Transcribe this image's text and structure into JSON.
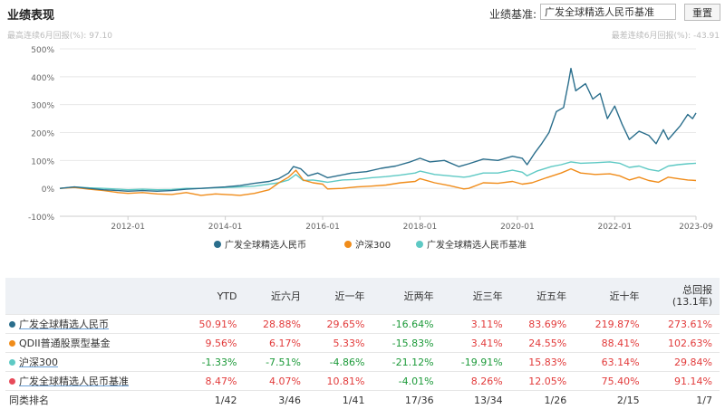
{
  "header": {
    "title": "业绩表现",
    "bench_label": "业绩基准:",
    "bench_value": "广发全球精选人民币基准",
    "reset_label": "重置",
    "max_gain": "最高连续6月回报(%): 97.10",
    "max_loss": "最差连续6月回报(%): -43.91"
  },
  "colors": {
    "fund": "#2a6e8c",
    "csi300": "#f08c1a",
    "benchmark": "#5ec9c4",
    "qdii": "#f08c1a",
    "fund_dot": "#2a6e8c",
    "bench_dot": "#e74b5a"
  },
  "chart_data": {
    "type": "line",
    "y_tick_labels": [
      "500%",
      "400%",
      "300%",
      "200%",
      "100%",
      "0%",
      "-100%"
    ],
    "x_tick_labels": [
      "2012-01",
      "2014-01",
      "2016-01",
      "2018-01",
      "2020-01",
      "2022-01",
      "2023-09"
    ],
    "ylim": [
      -100,
      500
    ],
    "xlim": [
      2010.6,
      2023.67
    ],
    "x_ticks": [
      2012.0,
      2014.0,
      2016.0,
      2018.0,
      2020.0,
      2022.0,
      2023.67
    ],
    "legend_position": "bottom",
    "series": [
      {
        "name": "广发全球精选人民币",
        "color": "#2a6e8c",
        "points": [
          [
            2010.6,
            0
          ],
          [
            2010.9,
            5
          ],
          [
            2011.2,
            0
          ],
          [
            2011.5,
            -5
          ],
          [
            2011.8,
            -8
          ],
          [
            2012.0,
            -10
          ],
          [
            2012.3,
            -8
          ],
          [
            2012.6,
            -10
          ],
          [
            2012.9,
            -8
          ],
          [
            2013.2,
            -3
          ],
          [
            2013.5,
            0
          ],
          [
            2013.8,
            3
          ],
          [
            2014.0,
            5
          ],
          [
            2014.3,
            10
          ],
          [
            2014.6,
            18
          ],
          [
            2014.9,
            25
          ],
          [
            2015.1,
            35
          ],
          [
            2015.3,
            55
          ],
          [
            2015.4,
            78
          ],
          [
            2015.55,
            70
          ],
          [
            2015.7,
            45
          ],
          [
            2015.9,
            55
          ],
          [
            2016.1,
            38
          ],
          [
            2016.3,
            45
          ],
          [
            2016.6,
            55
          ],
          [
            2016.9,
            60
          ],
          [
            2017.2,
            72
          ],
          [
            2017.5,
            80
          ],
          [
            2017.8,
            95
          ],
          [
            2018.0,
            108
          ],
          [
            2018.2,
            95
          ],
          [
            2018.5,
            100
          ],
          [
            2018.8,
            78
          ],
          [
            2019.0,
            88
          ],
          [
            2019.3,
            105
          ],
          [
            2019.6,
            100
          ],
          [
            2019.9,
            115
          ],
          [
            2020.1,
            108
          ],
          [
            2020.2,
            85
          ],
          [
            2020.35,
            125
          ],
          [
            2020.5,
            160
          ],
          [
            2020.65,
            200
          ],
          [
            2020.8,
            275
          ],
          [
            2020.95,
            290
          ],
          [
            2021.05,
            380
          ],
          [
            2021.1,
            430
          ],
          [
            2021.2,
            350
          ],
          [
            2021.4,
            375
          ],
          [
            2021.55,
            320
          ],
          [
            2021.7,
            340
          ],
          [
            2021.85,
            250
          ],
          [
            2022.0,
            295
          ],
          [
            2022.15,
            230
          ],
          [
            2022.3,
            175
          ],
          [
            2022.5,
            205
          ],
          [
            2022.7,
            190
          ],
          [
            2022.85,
            160
          ],
          [
            2023.0,
            210
          ],
          [
            2023.1,
            175
          ],
          [
            2023.2,
            195
          ],
          [
            2023.35,
            225
          ],
          [
            2023.5,
            265
          ],
          [
            2023.6,
            250
          ],
          [
            2023.67,
            270
          ]
        ]
      },
      {
        "name": "沪深300",
        "color": "#f08c1a",
        "points": [
          [
            2010.6,
            0
          ],
          [
            2010.9,
            3
          ],
          [
            2011.2,
            -3
          ],
          [
            2011.5,
            -8
          ],
          [
            2011.8,
            -15
          ],
          [
            2012.0,
            -18
          ],
          [
            2012.3,
            -15
          ],
          [
            2012.6,
            -20
          ],
          [
            2012.9,
            -22
          ],
          [
            2013.2,
            -15
          ],
          [
            2013.5,
            -25
          ],
          [
            2013.8,
            -20
          ],
          [
            2014.0,
            -22
          ],
          [
            2014.3,
            -25
          ],
          [
            2014.6,
            -18
          ],
          [
            2014.9,
            -5
          ],
          [
            2015.1,
            20
          ],
          [
            2015.3,
            40
          ],
          [
            2015.45,
            65
          ],
          [
            2015.6,
            30
          ],
          [
            2015.8,
            20
          ],
          [
            2016.0,
            15
          ],
          [
            2016.1,
            -2
          ],
          [
            2016.4,
            0
          ],
          [
            2016.7,
            5
          ],
          [
            2017.0,
            8
          ],
          [
            2017.3,
            12
          ],
          [
            2017.6,
            20
          ],
          [
            2017.9,
            25
          ],
          [
            2018.0,
            35
          ],
          [
            2018.3,
            20
          ],
          [
            2018.6,
            10
          ],
          [
            2018.9,
            -2
          ],
          [
            2019.0,
            0
          ],
          [
            2019.3,
            20
          ],
          [
            2019.6,
            18
          ],
          [
            2019.9,
            25
          ],
          [
            2020.1,
            15
          ],
          [
            2020.3,
            20
          ],
          [
            2020.6,
            38
          ],
          [
            2020.9,
            55
          ],
          [
            2021.1,
            70
          ],
          [
            2021.3,
            55
          ],
          [
            2021.6,
            50
          ],
          [
            2021.9,
            52
          ],
          [
            2022.1,
            45
          ],
          [
            2022.3,
            30
          ],
          [
            2022.5,
            40
          ],
          [
            2022.7,
            28
          ],
          [
            2022.9,
            22
          ],
          [
            2023.1,
            40
          ],
          [
            2023.3,
            35
          ],
          [
            2023.5,
            30
          ],
          [
            2023.67,
            28
          ]
        ]
      },
      {
        "name": "广发全球精选人民币基准",
        "color": "#5ec9c4",
        "points": [
          [
            2010.6,
            0
          ],
          [
            2010.9,
            5
          ],
          [
            2011.2,
            2
          ],
          [
            2011.5,
            0
          ],
          [
            2011.8,
            -3
          ],
          [
            2012.0,
            -5
          ],
          [
            2012.3,
            -3
          ],
          [
            2012.6,
            -5
          ],
          [
            2012.9,
            -4
          ],
          [
            2013.2,
            0
          ],
          [
            2013.5,
            0
          ],
          [
            2013.8,
            2
          ],
          [
            2014.0,
            3
          ],
          [
            2014.3,
            5
          ],
          [
            2014.6,
            8
          ],
          [
            2014.9,
            15
          ],
          [
            2015.1,
            20
          ],
          [
            2015.3,
            30
          ],
          [
            2015.45,
            50
          ],
          [
            2015.6,
            28
          ],
          [
            2015.8,
            30
          ],
          [
            2016.0,
            25
          ],
          [
            2016.1,
            22
          ],
          [
            2016.4,
            30
          ],
          [
            2016.7,
            32
          ],
          [
            2017.0,
            38
          ],
          [
            2017.3,
            42
          ],
          [
            2017.6,
            48
          ],
          [
            2017.9,
            55
          ],
          [
            2018.0,
            62
          ],
          [
            2018.3,
            50
          ],
          [
            2018.6,
            45
          ],
          [
            2018.9,
            40
          ],
          [
            2019.0,
            42
          ],
          [
            2019.3,
            55
          ],
          [
            2019.6,
            55
          ],
          [
            2019.9,
            65
          ],
          [
            2020.1,
            58
          ],
          [
            2020.2,
            45
          ],
          [
            2020.4,
            62
          ],
          [
            2020.7,
            78
          ],
          [
            2020.9,
            85
          ],
          [
            2021.1,
            95
          ],
          [
            2021.3,
            90
          ],
          [
            2021.6,
            92
          ],
          [
            2021.9,
            95
          ],
          [
            2022.1,
            90
          ],
          [
            2022.3,
            75
          ],
          [
            2022.5,
            80
          ],
          [
            2022.7,
            68
          ],
          [
            2022.9,
            62
          ],
          [
            2023.1,
            80
          ],
          [
            2023.3,
            85
          ],
          [
            2023.5,
            88
          ],
          [
            2023.67,
            90
          ]
        ]
      }
    ]
  },
  "table": {
    "headers": [
      "YTD",
      "近六月",
      "近一年",
      "近两年",
      "近三年",
      "近五年",
      "近十年",
      "总回报",
      "(13.1年)"
    ],
    "rows": [
      {
        "name": "广发全球精选人民币",
        "dot": "#2a6e8c",
        "underline": true,
        "cells": [
          "50.91%",
          "28.88%",
          "29.65%",
          "-16.64%",
          "3.11%",
          "83.69%",
          "219.87%",
          "273.61%"
        ]
      },
      {
        "name": "QDII普通股票型基金",
        "dot": "#f08c1a",
        "underline": false,
        "cells": [
          "9.56%",
          "6.17%",
          "5.33%",
          "-15.83%",
          "3.41%",
          "24.55%",
          "88.41%",
          "102.63%"
        ]
      },
      {
        "name": "沪深300",
        "dot": "#5ec9c4",
        "underline": true,
        "cells": [
          "-1.33%",
          "-7.51%",
          "-4.86%",
          "-21.12%",
          "-19.91%",
          "15.83%",
          "63.14%",
          "29.84%"
        ]
      },
      {
        "name": "广发全球精选人民币基准",
        "dot": "#e74b5a",
        "underline": true,
        "cells": [
          "8.47%",
          "4.07%",
          "10.81%",
          "-4.01%",
          "8.26%",
          "12.05%",
          "75.40%",
          "91.14%"
        ]
      }
    ],
    "rank_label": "同类排名",
    "rank_cells": [
      "1/42",
      "3/46",
      "1/41",
      "17/36",
      "13/34",
      "1/26",
      "2/15",
      "1/7"
    ]
  }
}
